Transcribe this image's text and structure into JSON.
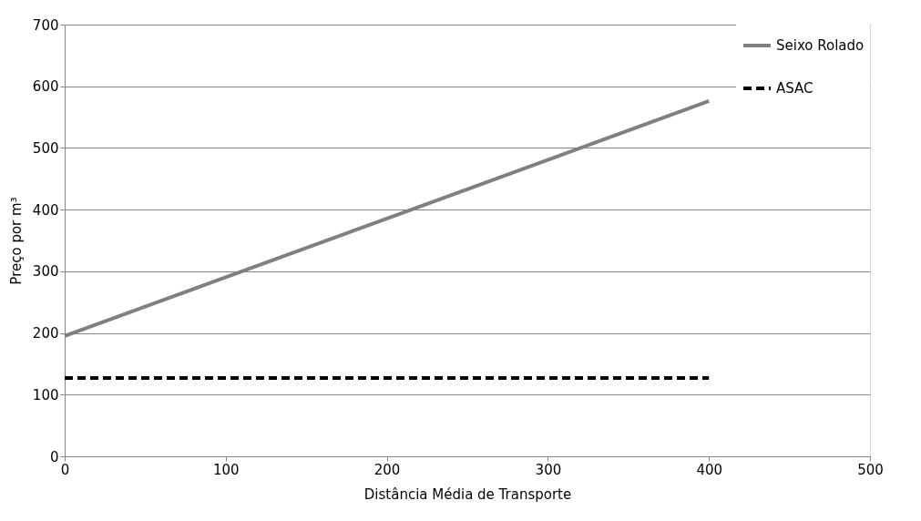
{
  "chart_data": {
    "type": "line",
    "xlabel": "Distância Média de Transporte",
    "ylabel": "Preço por m³",
    "x": [
      0,
      400
    ],
    "series": [
      {
        "name": "Seixo Rolado",
        "color": "#808080",
        "values": [
          195,
          576
        ],
        "line_style": "solid"
      },
      {
        "name": "ASAC",
        "color": "#000000",
        "values": [
          127,
          127
        ],
        "line_style": "dashed"
      }
    ],
    "xlim": [
      0,
      500
    ],
    "xticks": [
      0,
      100,
      200,
      300,
      400,
      500
    ],
    "ylim": [
      0,
      700
    ],
    "yticks": [
      0,
      100,
      200,
      300,
      400,
      500,
      600,
      700
    ],
    "grid": "y",
    "legend": "top right",
    "marker": "none"
  }
}
